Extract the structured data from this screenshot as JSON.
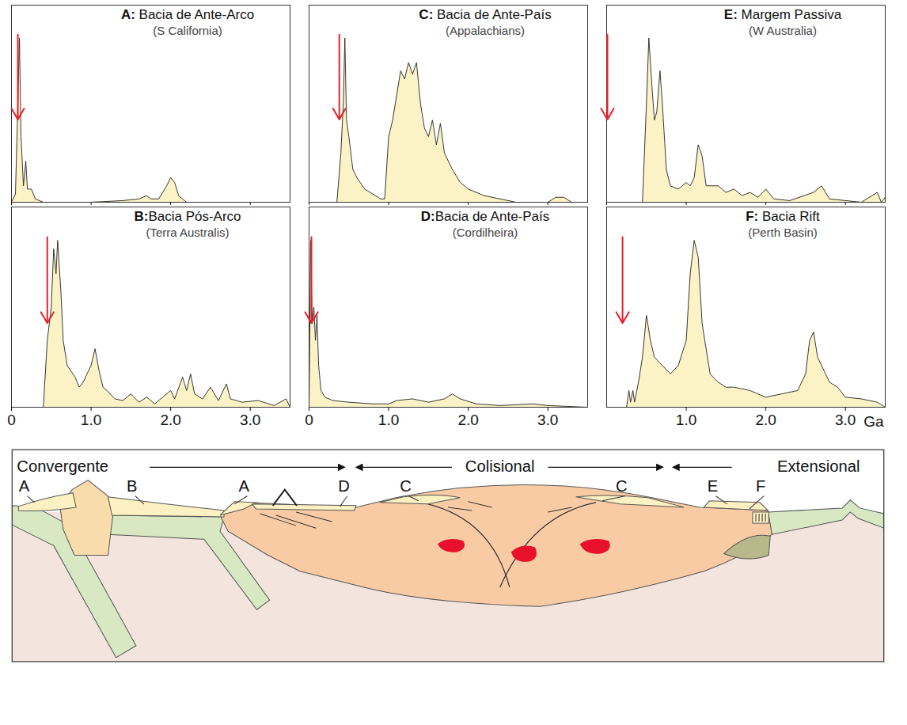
{
  "chart_data": [
    {
      "type": "area",
      "title": "A: Bacia de Ante-Arco",
      "subtitle": "(S California)",
      "color": "#fbf3c6",
      "xlim": [
        0,
        3.5
      ],
      "ylim": [
        0,
        120
      ],
      "xticks": [
        0,
        {
          "value": 1,
          "label": "1.0"
        },
        {
          "value": 2,
          "label": "2.0"
        },
        {
          "value": 3,
          "label": "3.0"
        }
      ],
      "tick_labels": false,
      "arrow": 0.08,
      "x": [
        0,
        0.05,
        0.08,
        0.1,
        0.12,
        0.15,
        0.18,
        0.2,
        0.25,
        0.3,
        0.4,
        1.0,
        1.4,
        1.6,
        1.7,
        1.75,
        1.85,
        1.95,
        2.0,
        2.05,
        2.1,
        2.2,
        3.5
      ],
      "values": [
        0,
        5,
        60,
        100,
        40,
        10,
        25,
        8,
        8,
        2,
        0,
        0,
        1,
        2,
        4,
        2,
        2,
        10,
        15,
        12,
        4,
        0,
        0
      ]
    },
    {
      "type": "area",
      "title": "B:Bacia Pós-Arco",
      "subtitle": "(Terra Australis)",
      "color": "#fbf3c6",
      "xlim": [
        0,
        3.5
      ],
      "ylim": [
        0,
        120
      ],
      "xticks": [
        0,
        {
          "value": 1,
          "label": "1.0"
        },
        {
          "value": 2,
          "label": "2.0"
        },
        {
          "value": 3,
          "label": "3.0"
        }
      ],
      "tick_labels": "x",
      "arrow": 0.45,
      "x": [
        0,
        0.4,
        0.45,
        0.5,
        0.53,
        0.56,
        0.58,
        0.62,
        0.65,
        0.7,
        0.8,
        0.85,
        0.9,
        0.95,
        1.0,
        1.05,
        1.1,
        1.15,
        1.2,
        1.3,
        1.4,
        1.5,
        1.6,
        1.7,
        1.8,
        2.0,
        2.05,
        2.15,
        2.2,
        2.25,
        2.3,
        2.4,
        2.5,
        2.6,
        2.7,
        2.75,
        2.9,
        3.1,
        3.3,
        3.45,
        3.5
      ],
      "values": [
        0,
        0,
        40,
        60,
        95,
        80,
        100,
        70,
        40,
        25,
        18,
        12,
        15,
        20,
        25,
        35,
        22,
        12,
        10,
        5,
        4,
        8,
        3,
        6,
        2,
        10,
        5,
        18,
        10,
        20,
        8,
        5,
        12,
        4,
        14,
        5,
        3,
        4,
        1,
        5,
        0
      ]
    },
    {
      "type": "area",
      "title": "C: Bacia de Ante-País",
      "subtitle": "(Appalachians)",
      "color": "#fbf3c6",
      "xlim": [
        0,
        3.5
      ],
      "ylim": [
        0,
        120
      ],
      "xticks": [
        0,
        {
          "value": 1,
          "label": "1.0"
        },
        {
          "value": 2,
          "label": "2.0"
        },
        {
          "value": 3,
          "label": "3.0"
        }
      ],
      "tick_labels": false,
      "arrow": 0.38,
      "x": [
        0,
        0.35,
        0.4,
        0.43,
        0.45,
        0.47,
        0.5,
        0.55,
        0.6,
        0.7,
        0.8,
        0.9,
        0.95,
        1.0,
        1.05,
        1.15,
        1.2,
        1.25,
        1.3,
        1.35,
        1.4,
        1.45,
        1.5,
        1.55,
        1.6,
        1.65,
        1.7,
        1.8,
        1.9,
        2.0,
        2.2,
        2.4,
        2.6,
        3.0,
        3.1,
        3.2,
        3.3,
        3.5
      ],
      "values": [
        0,
        0,
        30,
        60,
        100,
        50,
        40,
        20,
        15,
        8,
        5,
        2,
        2,
        40,
        50,
        80,
        75,
        85,
        78,
        85,
        60,
        45,
        40,
        50,
        35,
        48,
        30,
        20,
        12,
        8,
        4,
        2,
        0,
        0,
        3,
        3,
        0,
        0
      ]
    },
    {
      "type": "area",
      "title": "D:Bacia de Ante-País",
      "subtitle": "(Cordilheira)",
      "color": "#fbf3c6",
      "xlim": [
        0,
        3.5
      ],
      "ylim": [
        0,
        120
      ],
      "xticks": [
        0,
        {
          "value": 1,
          "label": "1.0"
        },
        {
          "value": 2,
          "label": "2.0"
        },
        {
          "value": 3,
          "label": "3.0"
        }
      ],
      "tick_labels": "x",
      "arrow": 0.03,
      "x": [
        0,
        0.02,
        0.04,
        0.06,
        0.08,
        0.1,
        0.12,
        0.15,
        0.2,
        0.3,
        0.5,
        0.8,
        1.0,
        1.1,
        1.3,
        1.5,
        1.7,
        1.8,
        1.9,
        2.1,
        2.4,
        2.8,
        3.0,
        3.5
      ],
      "values": [
        0,
        100,
        50,
        60,
        40,
        55,
        25,
        10,
        6,
        4,
        3,
        2,
        2,
        4,
        5,
        3,
        5,
        8,
        5,
        2,
        1,
        2,
        1,
        0
      ]
    },
    {
      "type": "area",
      "title": "E: Margem Passiva",
      "subtitle": "(W Australia)",
      "color": "#fbf3c6",
      "xlim": [
        0,
        3.5
      ],
      "ylim": [
        0,
        120
      ],
      "xticks": [
        0,
        {
          "value": 1,
          "label": "1.0"
        },
        {
          "value": 2,
          "label": "2.0"
        },
        {
          "value": 3,
          "label": "3.0"
        }
      ],
      "tick_labels": false,
      "arrow": 0.01,
      "x": [
        0,
        0.45,
        0.5,
        0.53,
        0.57,
        0.6,
        0.63,
        0.67,
        0.7,
        0.75,
        0.8,
        0.9,
        1.0,
        1.05,
        1.1,
        1.15,
        1.2,
        1.25,
        1.4,
        1.5,
        1.6,
        1.7,
        1.8,
        1.9,
        2.0,
        2.1,
        2.3,
        2.6,
        2.7,
        2.75,
        2.8,
        3.0,
        3.2,
        3.4,
        3.45,
        3.5
      ],
      "values": [
        0,
        0,
        60,
        100,
        70,
        50,
        55,
        80,
        60,
        20,
        10,
        8,
        12,
        10,
        15,
        35,
        28,
        10,
        10,
        6,
        8,
        4,
        6,
        3,
        8,
        2,
        1,
        6,
        10,
        6,
        2,
        1,
        0,
        6,
        0,
        3
      ]
    },
    {
      "type": "area",
      "title": "F: Bacia Rift",
      "subtitle": "(Perth Basin)",
      "color": "#fbf3c6",
      "xlim": [
        0,
        3.5
      ],
      "ylim": [
        0,
        120
      ],
      "xlabel": "Ga",
      "xticks": [
        {
          "value": 1,
          "label": "1.0"
        },
        {
          "value": 2,
          "label": "2.0"
        },
        {
          "value": 3,
          "label": "3.0"
        }
      ],
      "tick_labels": "x",
      "arrow": 0.2,
      "x": [
        0,
        0.25,
        0.28,
        0.3,
        0.33,
        0.35,
        0.4,
        0.45,
        0.5,
        0.55,
        0.6,
        0.7,
        0.8,
        0.9,
        1.0,
        1.05,
        1.1,
        1.15,
        1.2,
        1.3,
        1.4,
        1.5,
        1.6,
        1.8,
        1.9,
        2.0,
        2.2,
        2.4,
        2.5,
        2.55,
        2.6,
        2.65,
        2.7,
        2.8,
        2.9,
        3.0,
        3.2,
        3.4,
        3.5
      ],
      "values": [
        0,
        0,
        10,
        3,
        10,
        3,
        15,
        30,
        55,
        40,
        30,
        25,
        20,
        25,
        40,
        80,
        100,
        90,
        50,
        20,
        15,
        12,
        12,
        10,
        8,
        6,
        8,
        10,
        20,
        40,
        45,
        30,
        25,
        15,
        12,
        6,
        5,
        3,
        0
      ]
    }
  ],
  "diagram": {
    "regimes": [
      "Convergente",
      "Colisional",
      "Extensional"
    ],
    "labels": [
      "A",
      "B",
      "A",
      "D",
      "C",
      "C",
      "E",
      "F"
    ]
  }
}
